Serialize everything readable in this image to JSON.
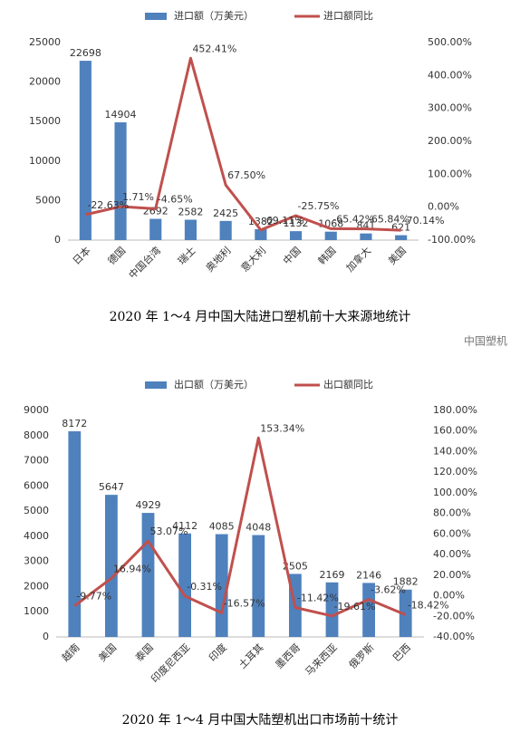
{
  "chart_data": [
    {
      "type": "bar_line",
      "title": "2020 年 1～4 月中国大陆进口塑机前十大来源地统计",
      "categories": [
        "日本",
        "德国",
        "中国台湾",
        "瑞士",
        "奥地利",
        "意大利",
        "中国",
        "韩国",
        "加拿大",
        "美国"
      ],
      "series": [
        {
          "name": "进口额（万美元）",
          "color": "#4f81bd",
          "values": [
            22698,
            14904,
            2692,
            2582,
            2425,
            1382,
            1132,
            1068,
            841,
            621
          ]
        },
        {
          "name": "进口额同比",
          "color": "#c0504d",
          "axis": "y2",
          "values": [
            -22.63,
            1.71,
            -4.65,
            452.41,
            67.5,
            -69.11,
            -25.75,
            -65.42,
            -65.84,
            -70.14
          ],
          "value_labels": [
            "-22.63%",
            "1.71%",
            "-4.65%",
            "452.41%",
            "67.50%",
            "-69.11%",
            "-25.75%",
            "-65.42%",
            "-65.84%",
            "-70.14%"
          ]
        }
      ],
      "ylim": [
        0,
        25000
      ],
      "yticks": [
        0,
        5000,
        10000,
        15000,
        20000,
        25000
      ],
      "y2lim": [
        -100,
        500
      ],
      "y2ticks": [
        {
          "value": -100,
          "label": "-100.00%"
        },
        {
          "value": 0,
          "label": "0.00%"
        },
        {
          "value": 100,
          "label": "100.00%"
        },
        {
          "value": 200,
          "label": "200.00%"
        },
        {
          "value": 300,
          "label": "300.00%"
        },
        {
          "value": 400,
          "label": "400.00%"
        },
        {
          "value": 500,
          "label": "500.00%"
        }
      ],
      "legend": "top",
      "watermark": "中国塑机"
    },
    {
      "type": "bar_line",
      "title": "2020 年 1～4 月中国大陆塑机出口市场前十统计",
      "categories": [
        "越南",
        "美国",
        "泰国",
        "印度尼西亚",
        "印度",
        "土耳其",
        "墨西哥",
        "马来西亚",
        "俄罗斯",
        "巴西"
      ],
      "series": [
        {
          "name": "出口额（万美元）",
          "color": "#4f81bd",
          "values": [
            8172,
            5647,
            4929,
            4112,
            4085,
            4048,
            2505,
            2169,
            2146,
            1882
          ]
        },
        {
          "name": "出口额同比",
          "color": "#c0504d",
          "axis": "y2",
          "values": [
            -9.77,
            16.94,
            53.07,
            -0.31,
            -16.57,
            153.34,
            -11.42,
            -19.61,
            -3.62,
            -18.42
          ],
          "value_labels": [
            "-9.77%",
            "16.94%",
            "53.07%",
            "-0.31%",
            "-16.57%",
            "153.34%",
            "-11.42%",
            "-19.61%",
            "-3.62%",
            "-18.42%"
          ]
        }
      ],
      "ylim": [
        0,
        9000
      ],
      "yticks": [
        0,
        1000,
        2000,
        3000,
        4000,
        5000,
        6000,
        7000,
        8000,
        9000
      ],
      "y2lim": [
        -40,
        180
      ],
      "y2ticks": [
        {
          "value": -40,
          "label": "-40.00%"
        },
        {
          "value": -20,
          "label": "-20.00%"
        },
        {
          "value": 0,
          "label": "0.00%"
        },
        {
          "value": 20,
          "label": "20.00%"
        },
        {
          "value": 40,
          "label": "40.00%"
        },
        {
          "value": 60,
          "label": "60.00%"
        },
        {
          "value": 80,
          "label": "80.00%"
        },
        {
          "value": 100,
          "label": "100.00%"
        },
        {
          "value": 120,
          "label": "120.00%"
        },
        {
          "value": 140,
          "label": "140.00%"
        },
        {
          "value": 160,
          "label": "160.00%"
        },
        {
          "value": 180,
          "label": "180.00%"
        }
      ],
      "legend": "top"
    }
  ]
}
